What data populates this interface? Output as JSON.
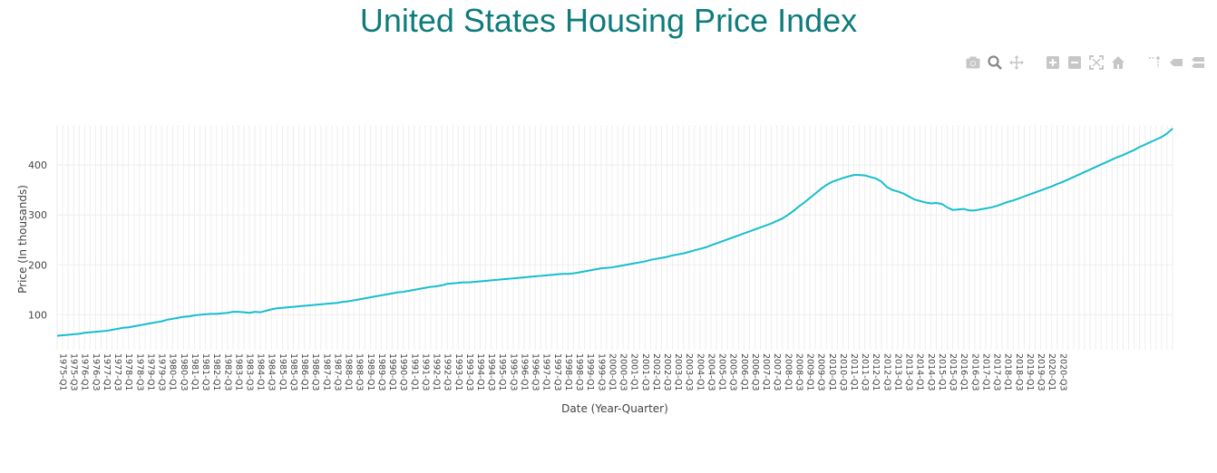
{
  "title": "United States Housing Price Index",
  "modebar": [
    "camera-icon",
    "zoom-icon",
    "pan-icon",
    "zoom-in-icon",
    "zoom-out-icon",
    "autoscale-icon",
    "reset-axes-icon",
    "spike-lines-icon",
    "hover-closest-icon",
    "hover-compare-icon"
  ],
  "colors": {
    "line": "#17becf",
    "title": "#0e7c7b",
    "grid": "#eeeeee"
  },
  "chart_data": {
    "type": "line",
    "xlabel": "Date (Year-Quarter)",
    "ylabel": "Price (In thousands)",
    "ylim": [
      30,
      480
    ],
    "yticks": [
      100,
      200,
      300,
      400
    ],
    "grid": true,
    "x_start": "1975-Q1",
    "x_end": "2020-Q3",
    "x_tick_labels": [
      "1975-Q1",
      "1975-Q3",
      "1976-Q1",
      "1976-Q3",
      "1977-Q1",
      "1977-Q3",
      "1978-Q1",
      "1978-Q3",
      "1979-Q1",
      "1979-Q3",
      "1980-Q1",
      "1980-Q3",
      "1981-Q1",
      "1981-Q3",
      "1982-Q1",
      "1982-Q3",
      "1983-Q1",
      "1983-Q3",
      "1984-Q1",
      "1984-Q3",
      "1985-Q1",
      "1985-Q3",
      "1986-Q1",
      "1986-Q3",
      "1987-Q1",
      "1987-Q3",
      "1988-Q1",
      "1988-Q3",
      "1989-Q1",
      "1989-Q3",
      "1990-Q1",
      "1990-Q3",
      "1991-Q1",
      "1991-Q3",
      "1992-Q1",
      "1992-Q3",
      "1993-Q1",
      "1993-Q3",
      "1994-Q1",
      "1994-Q3",
      "1995-Q1",
      "1995-Q3",
      "1996-Q1",
      "1996-Q3",
      "1997-Q1",
      "1997-Q3",
      "1998-Q1",
      "1998-Q3",
      "1999-Q1",
      "1999-Q3",
      "2000-Q1",
      "2000-Q3",
      "2001-Q1",
      "2001-Q3",
      "2002-Q1",
      "2002-Q3",
      "2003-Q1",
      "2003-Q3",
      "2004-Q1",
      "2004-Q3",
      "2005-Q1",
      "2005-Q3",
      "2006-Q1",
      "2006-Q3",
      "2007-Q1",
      "2007-Q3",
      "2008-Q1",
      "2008-Q3",
      "2009-Q1",
      "2009-Q3",
      "2010-Q1",
      "2010-Q3",
      "2011-Q1",
      "2011-Q3",
      "2012-Q1",
      "2012-Q3",
      "2013-Q1",
      "2013-Q3",
      "2014-Q1",
      "2014-Q3",
      "2015-Q1",
      "2015-Q3",
      "2016-Q1",
      "2016-Q3",
      "2017-Q1",
      "2017-Q3",
      "2018-Q1",
      "2018-Q3",
      "2019-Q1",
      "2019-Q3",
      "2020-Q1",
      "2020-Q3"
    ],
    "series": [
      {
        "values": [
          58,
          59,
          60,
          61,
          62,
          64,
          65,
          66,
          67,
          68,
          70,
          72,
          74,
          75,
          77,
          79,
          81,
          83,
          85,
          87,
          90,
          92,
          94,
          96,
          97,
          99,
          100,
          101,
          102,
          102,
          103,
          104,
          106,
          106,
          105,
          104,
          106,
          105,
          108,
          111,
          113,
          114,
          115,
          116,
          117,
          118,
          119,
          120,
          121,
          122,
          123,
          124,
          126,
          127,
          129,
          131,
          133,
          135,
          137,
          139,
          141,
          143,
          145,
          146,
          148,
          150,
          152,
          154,
          156,
          157,
          159,
          162,
          163,
          164,
          165,
          165,
          166,
          167,
          168,
          169,
          170,
          171,
          172,
          173,
          174,
          175,
          176,
          177,
          178,
          179,
          180,
          181,
          182,
          182,
          183,
          185,
          187,
          189,
          191,
          193,
          194,
          195,
          197,
          199,
          201,
          203,
          205,
          207,
          210,
          212,
          214,
          216,
          219,
          221,
          223,
          226,
          229,
          232,
          235,
          239,
          243,
          247,
          251,
          255,
          259,
          263,
          267,
          271,
          275,
          279,
          283,
          288,
          293,
          300,
          308,
          317,
          325,
          334,
          343,
          352,
          360,
          366,
          370,
          374,
          377,
          380,
          380,
          379,
          376,
          373,
          367,
          356,
          350,
          347,
          343,
          337,
          331,
          328,
          325,
          323,
          324,
          322,
          315,
          310,
          311,
          312,
          309,
          309,
          311,
          313,
          315,
          318,
          322,
          326,
          329,
          333,
          337,
          341,
          345,
          349,
          353,
          357,
          362,
          366,
          371,
          376,
          381,
          386,
          391,
          396,
          401,
          406,
          411,
          416,
          420,
          425,
          430,
          436,
          441,
          446,
          451,
          456,
          463,
          473
        ]
      }
    ]
  }
}
